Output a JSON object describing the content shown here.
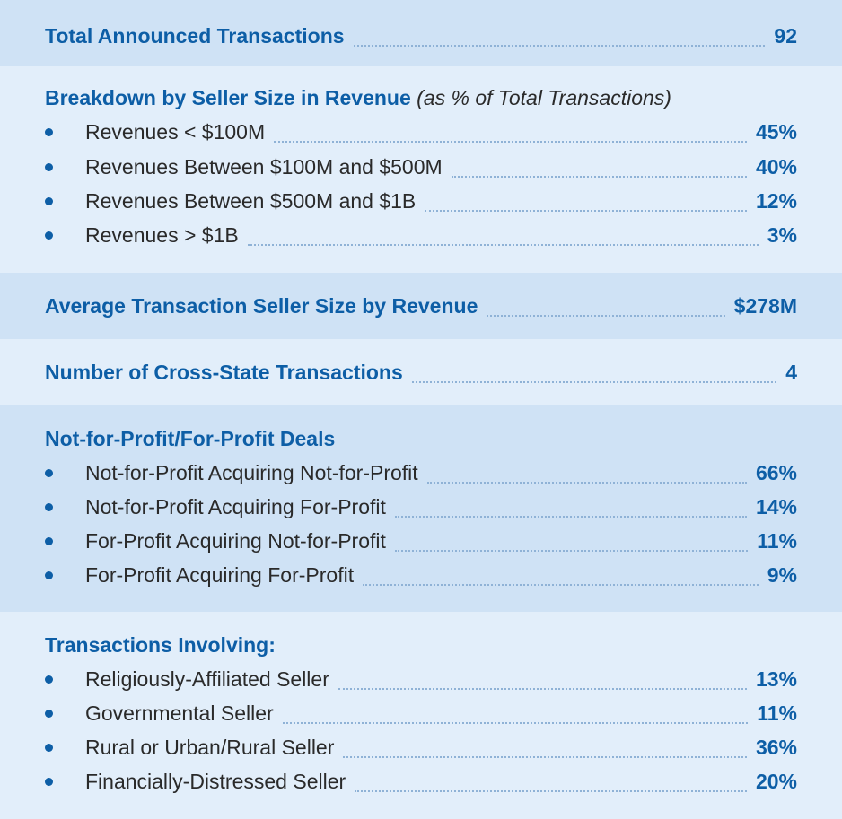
{
  "total": {
    "label": "Total Announced Transactions",
    "value": "92"
  },
  "seller_size": {
    "title": "Breakdown by Seller Size in Revenue",
    "subtitle": "(as % of Total Transactions)",
    "items": [
      {
        "label": "Revenues < $100M",
        "value": "45%"
      },
      {
        "label": "Revenues Between $100M and $500M",
        "value": "40%"
      },
      {
        "label": "Revenues Between $500M and $1B",
        "value": "12%"
      },
      {
        "label": "Revenues > $1B",
        "value": "3%"
      }
    ]
  },
  "average": {
    "label": "Average Transaction Seller Size by Revenue",
    "value": "$278M"
  },
  "cross_state": {
    "label": "Number of Cross-State Transactions",
    "value": "4"
  },
  "profit_deals": {
    "title": "Not-for-Profit/For-Profit Deals",
    "items": [
      {
        "label": "Not-for-Profit Acquiring Not-for-Profit",
        "value": "66%"
      },
      {
        "label": "Not-for-Profit Acquiring For-Profit",
        "value": "14%"
      },
      {
        "label": "For-Profit Acquiring Not-for-Profit",
        "value": "11%"
      },
      {
        "label": "For-Profit Acquiring For-Profit",
        "value": "9%"
      }
    ]
  },
  "involving": {
    "title": "Transactions Involving:",
    "items": [
      {
        "label": "Religiously-Affiliated Seller",
        "value": "13%"
      },
      {
        "label": "Governmental Seller",
        "value": "11%"
      },
      {
        "label": "Rural or Urban/Rural Seller",
        "value": "36%"
      },
      {
        "label": "Financially-Distressed Seller",
        "value": "20%"
      }
    ]
  }
}
